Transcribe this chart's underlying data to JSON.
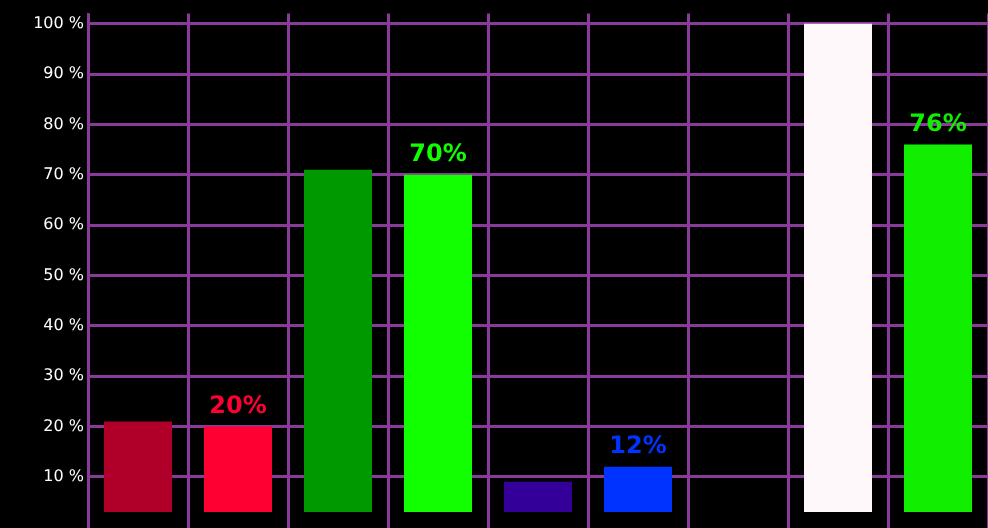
{
  "chart_data": {
    "type": "bar",
    "categories": [
      null,
      null,
      null,
      null,
      null,
      null,
      null,
      null,
      null
    ],
    "values": [
      21,
      20,
      71,
      70,
      9,
      12,
      null,
      100,
      76
    ],
    "colors": [
      "#b0002a",
      "#ff0033",
      "#009900",
      "#11ff00",
      "#330099",
      "#0033ff",
      "#000000",
      "#fff8fb",
      "#11ee00"
    ],
    "value_labels": [
      null,
      "20%",
      null,
      "70%",
      null,
      "12%",
      null,
      null,
      "76%"
    ],
    "ylim": [
      3,
      102
    ],
    "yticks": [
      {
        "value": 10,
        "label": "10 %"
      },
      {
        "value": 20,
        "label": "20 %"
      },
      {
        "value": 30,
        "label": "30 %"
      },
      {
        "value": 40,
        "label": "40 %"
      },
      {
        "value": 50,
        "label": "50 %"
      },
      {
        "value": 60,
        "label": "60 %"
      },
      {
        "value": 70,
        "label": "70 %"
      },
      {
        "value": 80,
        "label": "80 %"
      },
      {
        "value": 90,
        "label": "90 %"
      },
      {
        "value": 100,
        "label": "100 %"
      }
    ],
    "grid": true
  }
}
